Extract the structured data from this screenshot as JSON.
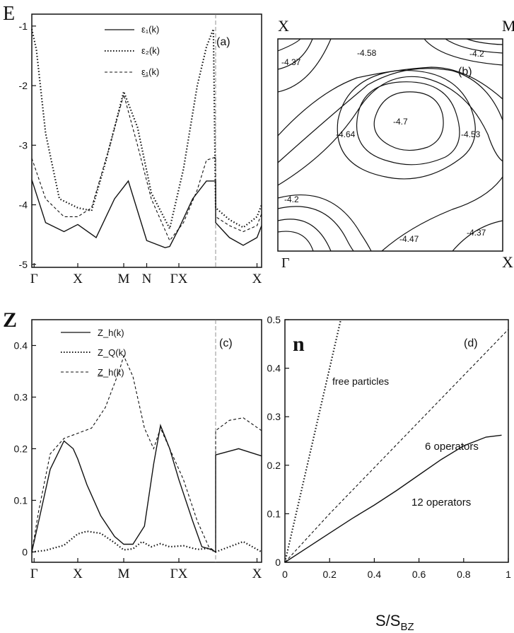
{
  "panels": {
    "a": {
      "tag": "(a)",
      "y_axis_letter": "E",
      "y_ticks": [
        "-1",
        "-2",
        "-3",
        "-4",
        "-5"
      ],
      "x_ticks": [
        "Γ",
        "X",
        "M",
        "N",
        "ΓX",
        "X"
      ],
      "legend": [
        "ε₁(k)",
        "ε₂(k)",
        "ε̲₁(k)"
      ]
    },
    "b": {
      "tag": "(b)",
      "corners": [
        "X",
        "M",
        "Γ",
        "X"
      ],
      "contour_labels": [
        "-4.37",
        "-4.58",
        "-4.2",
        "-4.64",
        "-4.7",
        "-4.53",
        "-4.2",
        "-4.47",
        "-4.37"
      ]
    },
    "c": {
      "tag": "(c)",
      "y_axis_letter": "Z",
      "y_ticks": [
        "0.4",
        "0.3",
        "0.2",
        "0.1",
        "0"
      ],
      "x_ticks": [
        "Γ",
        "X",
        "M",
        "ΓX",
        "X"
      ],
      "legend": [
        "Z_h(k)",
        "Z_Q(k)",
        "Z̲_h(k)"
      ]
    },
    "d": {
      "tag": "(d)",
      "y_axis_letter": "n",
      "y_ticks": [
        "0.5",
        "0.4",
        "0.3",
        "0.2",
        "0.1",
        "0"
      ],
      "x_ticks": [
        "0.2",
        "0.4",
        "0.6",
        "0.8",
        "1"
      ],
      "x_label": "S/S",
      "x_label_sub": "BZ",
      "annotations": [
        "free particles",
        "6 operators",
        "12 operators"
      ]
    }
  },
  "colors": {
    "ink": "#111111",
    "background": "#ffffff"
  },
  "chart_data": [
    {
      "panel": "a",
      "type": "line",
      "path_points": [
        "Γ",
        "X",
        "M",
        "N",
        "Γ",
        "X",
        "M",
        "X"
      ],
      "ylim": [
        -5,
        -1
      ],
      "series": [
        {
          "name": "ε₁(k)",
          "style": "solid",
          "x": [
            0,
            0.3,
            0.7,
            1,
            1.4,
            1.8,
            2.1,
            2.5,
            2.9,
            3,
            3.2,
            3.5,
            3.8,
            4,
            4,
            4.3,
            4.6,
            4.9,
            5
          ],
          "y": [
            -3.58,
            -4.3,
            -4.45,
            -4.33,
            -4.55,
            -3.9,
            -3.6,
            -4.6,
            -4.72,
            -4.7,
            -4.4,
            -3.9,
            -3.6,
            -3.6,
            -4.3,
            -4.55,
            -4.68,
            -4.55,
            -4.35
          ]
        },
        {
          "name": "ε₂(k)",
          "style": "dotted",
          "x": [
            0,
            0.1,
            0.3,
            0.6,
            1,
            1.3,
            1.6,
            2,
            2.3,
            2.6,
            3,
            3.3,
            3.6,
            3.8,
            3.95,
            4,
            4.3,
            4.6,
            4.9,
            5
          ],
          "y": [
            -1.05,
            -1.4,
            -2.8,
            -3.9,
            -4.05,
            -4.1,
            -3.3,
            -2.1,
            -2.7,
            -3.8,
            -4.4,
            -3.4,
            -2.0,
            -1.35,
            -1.05,
            -4.05,
            -4.25,
            -4.38,
            -4.2,
            -4.0
          ]
        },
        {
          "name": "ε̲₁(k)",
          "style": "dashed",
          "x": [
            0,
            0.3,
            0.7,
            1,
            1.3,
            1.7,
            2,
            2.3,
            2.6,
            3,
            3.3,
            3.6,
            3.8,
            4,
            4,
            4.3,
            4.6,
            4.9,
            5
          ],
          "y": [
            -3.22,
            -3.9,
            -4.2,
            -4.2,
            -4.05,
            -3.0,
            -2.15,
            -3.0,
            -3.9,
            -4.6,
            -4.3,
            -3.75,
            -3.25,
            -3.2,
            -4.2,
            -4.35,
            -4.45,
            -4.35,
            -4.15
          ]
        }
      ]
    },
    {
      "panel": "b",
      "type": "contour",
      "levels": [
        -4.7,
        -4.64,
        -4.58,
        -4.53,
        -4.47,
        -4.37,
        -4.2
      ]
    },
    {
      "panel": "c",
      "type": "line",
      "path_points": [
        "Γ",
        "X",
        "M",
        "Γ",
        "X",
        "M",
        "X"
      ],
      "ylim": [
        0,
        0.45
      ],
      "series": [
        {
          "name": "Z_h(k)",
          "style": "solid",
          "x": [
            0,
            0.15,
            0.4,
            0.7,
            0.9,
            1,
            1.2,
            1.5,
            1.8,
            2,
            2.2,
            2.45,
            2.65,
            2.8,
            3,
            3.2,
            3.5,
            3.7,
            3.9,
            4,
            4,
            4.5,
            5
          ],
          "y": [
            0,
            0.06,
            0.16,
            0.215,
            0.2,
            0.18,
            0.13,
            0.07,
            0.03,
            0.015,
            0.015,
            0.05,
            0.17,
            0.245,
            0.2,
            0.14,
            0.06,
            0.01,
            0.005,
            0,
            0.188,
            0.2,
            0.186
          ]
        },
        {
          "name": "Z_Q(k)",
          "style": "dotted",
          "x": [
            0,
            0.3,
            0.7,
            1,
            1.2,
            1.5,
            1.8,
            2,
            2.2,
            2.4,
            2.6,
            2.8,
            3,
            3.3,
            3.6,
            3.85,
            4,
            4.3,
            4.6,
            4.8,
            5
          ],
          "y": [
            0,
            0.003,
            0.013,
            0.035,
            0.04,
            0.036,
            0.018,
            0.004,
            0.006,
            0.02,
            0.01,
            0.016,
            0.01,
            0.012,
            0.005,
            0.007,
            0.0,
            0.01,
            0.02,
            0.01,
            0.0
          ]
        },
        {
          "name": "Z̲_h(k)",
          "style": "dashed",
          "x": [
            0,
            0.15,
            0.4,
            0.7,
            1,
            1.3,
            1.6,
            1.9,
            2,
            2.2,
            2.45,
            2.65,
            2.8,
            3,
            3.3,
            3.6,
            3.85,
            4,
            4,
            4.3,
            4.6,
            5
          ],
          "y": [
            0,
            0.08,
            0.19,
            0.22,
            0.23,
            0.24,
            0.28,
            0.35,
            0.38,
            0.34,
            0.24,
            0.2,
            0.24,
            0.2,
            0.14,
            0.06,
            0.01,
            0,
            0.235,
            0.255,
            0.26,
            0.235
          ]
        }
      ]
    },
    {
      "panel": "d",
      "type": "line",
      "xlabel": "S/S_BZ",
      "ylabel": "n",
      "xlim": [
        0,
        1
      ],
      "ylim": [
        0,
        0.5
      ],
      "series": [
        {
          "name": "free particles",
          "style": "dotted",
          "x": [
            0,
            0.05,
            0.1,
            0.15,
            0.2,
            0.25
          ],
          "y": [
            0,
            0.1,
            0.2,
            0.3,
            0.4,
            0.5
          ]
        },
        {
          "name": "6 operators",
          "style": "dashed",
          "x": [
            0,
            0.2,
            0.4,
            0.6,
            0.8,
            1
          ],
          "y": [
            0,
            0.1,
            0.195,
            0.29,
            0.385,
            0.48
          ]
        },
        {
          "name": "12 operators",
          "style": "solid",
          "x": [
            0,
            0.1,
            0.2,
            0.3,
            0.4,
            0.5,
            0.6,
            0.7,
            0.8,
            0.9,
            0.97
          ],
          "y": [
            0,
            0.03,
            0.06,
            0.09,
            0.118,
            0.148,
            0.18,
            0.212,
            0.24,
            0.258,
            0.262
          ]
        }
      ]
    }
  ]
}
